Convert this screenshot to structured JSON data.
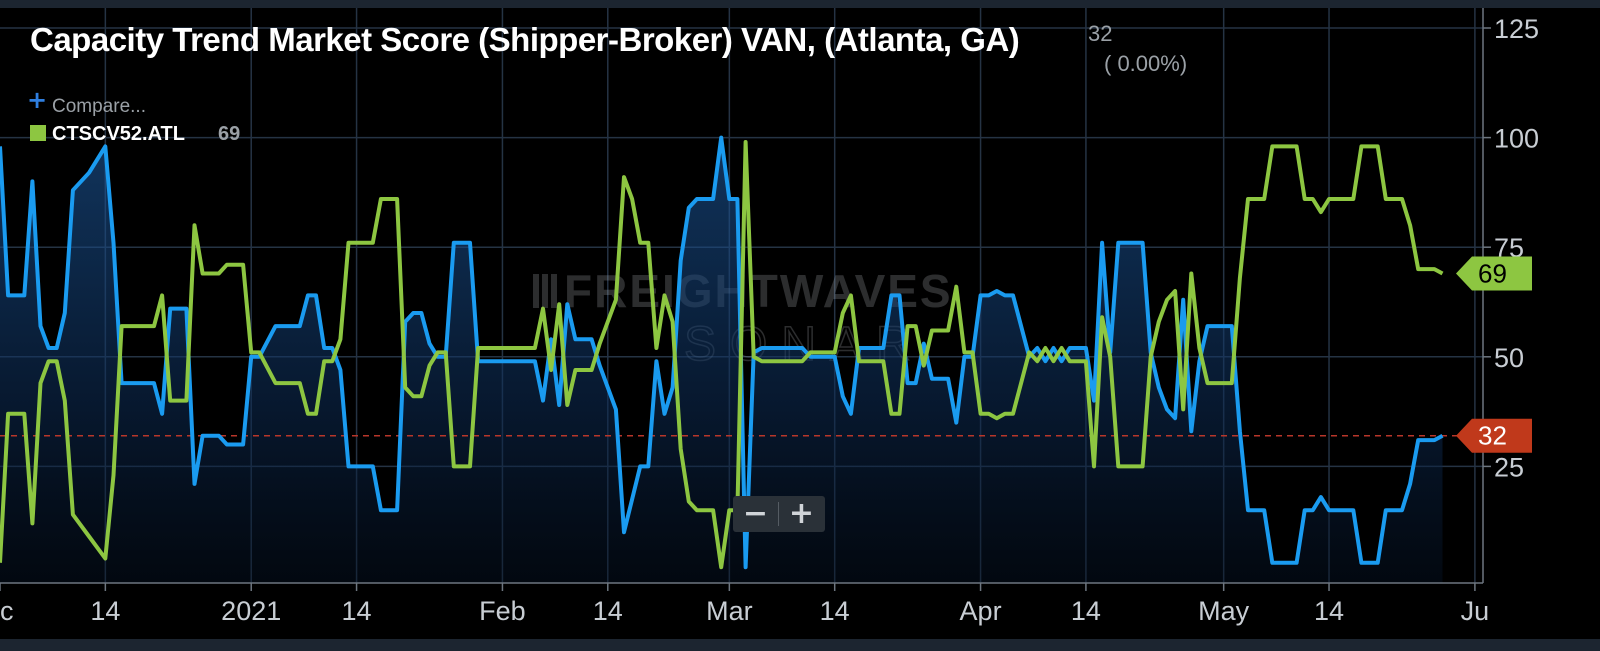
{
  "header": {
    "title": "Capacity Trend Market Score (Shipper-Broker) VAN, (Atlanta, GA)",
    "current_value": "32",
    "change": "( 0.00%)"
  },
  "legend": {
    "compare_label": "Compare...",
    "series_name": "CTSCV52.ATL",
    "series_value": "69"
  },
  "watermark": {
    "line1": "FREIGHTWAVES",
    "line2": "SONAR"
  },
  "zoom": {
    "minus": "−",
    "plus": "+"
  },
  "badges": {
    "green": "69",
    "red": "32"
  },
  "colors": {
    "background": "#000000",
    "primary_series": "#1a9bf0",
    "secondary_series": "#8dc641",
    "reference_line": "#b8362a",
    "grid": "#253344"
  },
  "chart_data": {
    "type": "line",
    "y_axis": {
      "min": 0,
      "max": 125,
      "ticks": [
        25,
        50,
        75,
        100,
        125
      ],
      "position": "right"
    },
    "x_axis": {
      "ticks": [
        {
          "label": "c",
          "x": 0
        },
        {
          "label": "14",
          "x": 13
        },
        {
          "label": "2021",
          "x": 31
        },
        {
          "label": "14",
          "x": 44
        },
        {
          "label": "Feb",
          "x": 62
        },
        {
          "label": "14",
          "x": 75
        },
        {
          "label": "Mar",
          "x": 90
        },
        {
          "label": "14",
          "x": 103
        },
        {
          "label": "Apr",
          "x": 121
        },
        {
          "label": "14",
          "x": 134
        },
        {
          "label": "May",
          "x": 151
        },
        {
          "label": "14",
          "x": 164
        },
        {
          "label": "Ju",
          "x": 182
        }
      ],
      "domain": [
        0,
        183
      ]
    },
    "reference_line": {
      "value": 32,
      "style": "dashed"
    },
    "series": [
      {
        "name": "Capacity Trend Market Score (Shipper-Broker) VAN, (Atlanta, GA)",
        "color": "#1a9bf0",
        "filled": true,
        "points": [
          [
            0,
            98
          ],
          [
            1,
            64
          ],
          [
            3,
            64
          ],
          [
            4,
            90
          ],
          [
            5,
            57
          ],
          [
            6,
            52
          ],
          [
            7,
            52
          ],
          [
            8,
            60
          ],
          [
            9,
            88
          ],
          [
            11,
            92
          ],
          [
            13,
            98
          ],
          [
            14,
            76
          ],
          [
            15,
            44
          ],
          [
            16,
            44
          ],
          [
            19,
            44
          ],
          [
            20,
            37
          ],
          [
            21,
            61
          ],
          [
            23,
            61
          ],
          [
            24,
            21
          ],
          [
            25,
            32
          ],
          [
            27,
            32
          ],
          [
            28,
            30
          ],
          [
            30,
            30
          ],
          [
            31,
            50
          ],
          [
            32,
            50
          ],
          [
            34,
            57
          ],
          [
            37,
            57
          ],
          [
            38,
            64
          ],
          [
            39,
            64
          ],
          [
            40,
            52
          ],
          [
            41,
            52
          ],
          [
            42,
            47
          ],
          [
            43,
            25
          ],
          [
            46,
            25
          ],
          [
            47,
            15
          ],
          [
            49,
            15
          ],
          [
            50,
            58
          ],
          [
            51,
            60
          ],
          [
            52,
            60
          ],
          [
            53,
            53
          ],
          [
            54,
            50
          ],
          [
            55,
            50
          ],
          [
            56,
            76
          ],
          [
            58,
            76
          ],
          [
            59,
            49
          ],
          [
            62,
            49
          ],
          [
            66,
            49
          ],
          [
            67,
            40
          ],
          [
            68,
            54
          ],
          [
            69,
            39
          ],
          [
            70,
            62
          ],
          [
            71,
            54
          ],
          [
            73,
            54
          ],
          [
            74,
            48
          ],
          [
            76,
            38
          ],
          [
            77,
            10
          ],
          [
            79,
            25
          ],
          [
            80,
            25
          ],
          [
            81,
            49
          ],
          [
            82,
            37
          ],
          [
            83,
            43
          ],
          [
            84,
            72
          ],
          [
            85,
            84
          ],
          [
            86,
            86
          ],
          [
            88,
            86
          ],
          [
            89,
            100
          ],
          [
            90,
            86
          ],
          [
            91,
            86
          ],
          [
            92,
            2
          ],
          [
            93,
            51
          ],
          [
            94,
            52
          ],
          [
            99,
            52
          ],
          [
            100,
            50
          ],
          [
            103,
            50
          ],
          [
            104,
            41
          ],
          [
            105,
            37
          ],
          [
            106,
            52
          ],
          [
            109,
            52
          ],
          [
            110,
            64
          ],
          [
            111,
            64
          ],
          [
            112,
            44
          ],
          [
            113,
            44
          ],
          [
            114,
            53
          ],
          [
            115,
            45
          ],
          [
            117,
            45
          ],
          [
            118,
            35
          ],
          [
            119,
            50
          ],
          [
            120,
            50
          ],
          [
            121,
            64
          ],
          [
            122,
            64
          ],
          [
            123,
            65
          ],
          [
            124,
            64
          ],
          [
            125,
            64
          ],
          [
            127,
            50
          ],
          [
            128,
            52
          ],
          [
            129,
            49
          ],
          [
            130,
            52
          ],
          [
            131,
            49
          ],
          [
            132,
            52
          ],
          [
            134,
            52
          ],
          [
            135,
            40
          ],
          [
            136,
            76
          ],
          [
            137,
            51
          ],
          [
            138,
            76
          ],
          [
            141,
            76
          ],
          [
            142,
            51
          ],
          [
            143,
            43
          ],
          [
            144,
            38
          ],
          [
            145,
            36
          ],
          [
            146,
            63
          ],
          [
            147,
            33
          ],
          [
            148,
            49
          ],
          [
            149,
            57
          ],
          [
            152,
            57
          ],
          [
            153,
            33
          ],
          [
            154,
            15
          ],
          [
            156,
            15
          ],
          [
            157,
            3
          ],
          [
            160,
            3
          ],
          [
            161,
            15
          ],
          [
            162,
            15
          ],
          [
            163,
            18
          ],
          [
            164,
            15
          ],
          [
            167,
            15
          ],
          [
            168,
            3
          ],
          [
            170,
            3
          ],
          [
            171,
            15
          ],
          [
            173,
            15
          ],
          [
            174,
            21
          ],
          [
            175,
            31
          ],
          [
            177,
            31
          ],
          [
            178,
            32
          ]
        ]
      },
      {
        "name": "CTSCV52.ATL",
        "color": "#8dc641",
        "filled": false,
        "points": [
          [
            0,
            3
          ],
          [
            1,
            37
          ],
          [
            3,
            37
          ],
          [
            4,
            12
          ],
          [
            5,
            44
          ],
          [
            6,
            49
          ],
          [
            7,
            49
          ],
          [
            8,
            40
          ],
          [
            9,
            14
          ],
          [
            11,
            9
          ],
          [
            13,
            4
          ],
          [
            14,
            23
          ],
          [
            15,
            57
          ],
          [
            16,
            57
          ],
          [
            19,
            57
          ],
          [
            20,
            64
          ],
          [
            21,
            40
          ],
          [
            23,
            40
          ],
          [
            24,
            80
          ],
          [
            25,
            69
          ],
          [
            27,
            69
          ],
          [
            28,
            71
          ],
          [
            30,
            71
          ],
          [
            31,
            51
          ],
          [
            32,
            51
          ],
          [
            34,
            44
          ],
          [
            37,
            44
          ],
          [
            38,
            37
          ],
          [
            39,
            37
          ],
          [
            40,
            49
          ],
          [
            41,
            49
          ],
          [
            42,
            54
          ],
          [
            43,
            76
          ],
          [
            46,
            76
          ],
          [
            47,
            86
          ],
          [
            49,
            86
          ],
          [
            50,
            43
          ],
          [
            51,
            41
          ],
          [
            52,
            41
          ],
          [
            53,
            48
          ],
          [
            54,
            51
          ],
          [
            55,
            51
          ],
          [
            56,
            25
          ],
          [
            58,
            25
          ],
          [
            59,
            52
          ],
          [
            62,
            52
          ],
          [
            66,
            52
          ],
          [
            67,
            61
          ],
          [
            68,
            47
          ],
          [
            69,
            62
          ],
          [
            70,
            39
          ],
          [
            71,
            47
          ],
          [
            73,
            47
          ],
          [
            74,
            53
          ],
          [
            76,
            63
          ],
          [
            77,
            91
          ],
          [
            78,
            86
          ],
          [
            79,
            76
          ],
          [
            80,
            76
          ],
          [
            81,
            52
          ],
          [
            82,
            64
          ],
          [
            83,
            58
          ],
          [
            84,
            29
          ],
          [
            85,
            17
          ],
          [
            86,
            15
          ],
          [
            88,
            15
          ],
          [
            89,
            2
          ],
          [
            90,
            15
          ],
          [
            91,
            15
          ],
          [
            92,
            99
          ],
          [
            93,
            50
          ],
          [
            94,
            49
          ],
          [
            99,
            49
          ],
          [
            100,
            51
          ],
          [
            103,
            51
          ],
          [
            104,
            60
          ],
          [
            105,
            64
          ],
          [
            106,
            49
          ],
          [
            109,
            49
          ],
          [
            110,
            37
          ],
          [
            111,
            37
          ],
          [
            112,
            57
          ],
          [
            113,
            57
          ],
          [
            114,
            48
          ],
          [
            115,
            56
          ],
          [
            117,
            56
          ],
          [
            118,
            66
          ],
          [
            119,
            51
          ],
          [
            120,
            51
          ],
          [
            121,
            37
          ],
          [
            122,
            37
          ],
          [
            123,
            36
          ],
          [
            124,
            37
          ],
          [
            125,
            37
          ],
          [
            127,
            51
          ],
          [
            128,
            49
          ],
          [
            129,
            52
          ],
          [
            130,
            49
          ],
          [
            131,
            52
          ],
          [
            132,
            49
          ],
          [
            134,
            49
          ],
          [
            135,
            25
          ],
          [
            136,
            59
          ],
          [
            137,
            50
          ],
          [
            138,
            25
          ],
          [
            141,
            25
          ],
          [
            142,
            50
          ],
          [
            143,
            58
          ],
          [
            144,
            63
          ],
          [
            145,
            65
          ],
          [
            146,
            38
          ],
          [
            147,
            69
          ],
          [
            148,
            52
          ],
          [
            149,
            44
          ],
          [
            152,
            44
          ],
          [
            153,
            68
          ],
          [
            154,
            86
          ],
          [
            156,
            86
          ],
          [
            157,
            98
          ],
          [
            160,
            98
          ],
          [
            161,
            86
          ],
          [
            162,
            86
          ],
          [
            163,
            83
          ],
          [
            164,
            86
          ],
          [
            167,
            86
          ],
          [
            168,
            98
          ],
          [
            170,
            98
          ],
          [
            171,
            86
          ],
          [
            173,
            86
          ],
          [
            174,
            80
          ],
          [
            175,
            70
          ],
          [
            177,
            70
          ],
          [
            178,
            69
          ]
        ]
      }
    ]
  }
}
